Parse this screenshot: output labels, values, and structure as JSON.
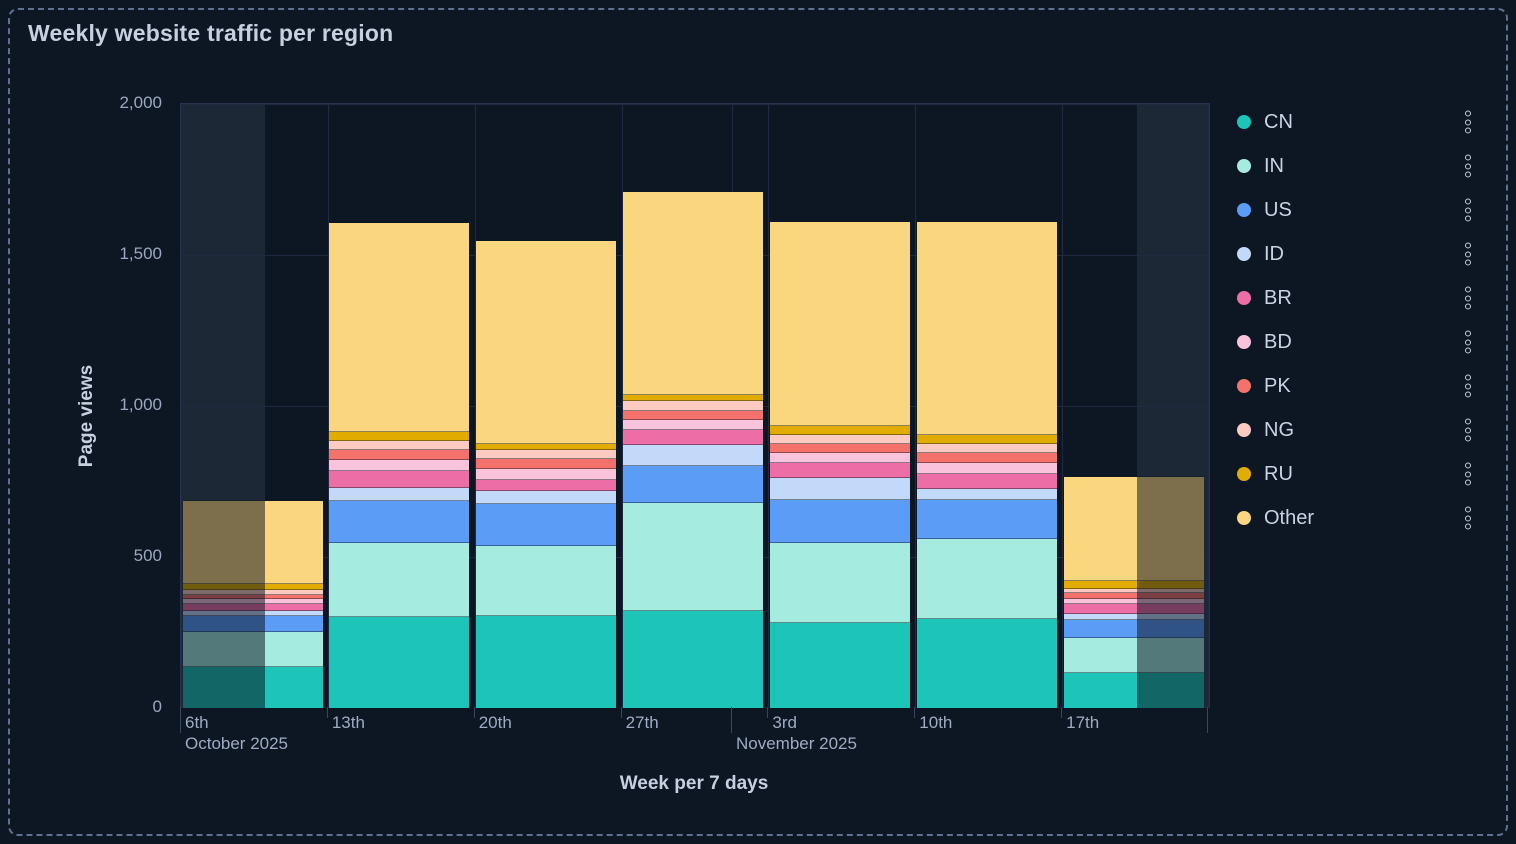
{
  "panel": {
    "title": "Weekly website traffic per region"
  },
  "chart_data": {
    "type": "bar",
    "stacked": true,
    "title": "Weekly website traffic per region",
    "xlabel": "Week per 7 days",
    "ylabel": "Page views",
    "ylim": [
      0,
      2000
    ],
    "yticks": [
      0,
      500,
      1000,
      1500,
      2000
    ],
    "ytick_labels": [
      "0",
      "500",
      "1,000",
      "1,500",
      "2,000"
    ],
    "categories": [
      "6th",
      "13th",
      "20th",
      "27th",
      "3rd",
      "10th",
      "17th"
    ],
    "month_labels": [
      {
        "text": "October 2025",
        "anchor_frac": 0.0
      },
      {
        "text": "November 2025",
        "anchor_frac": 0.536
      }
    ],
    "series": [
      {
        "name": "CN",
        "color": "#1cc5b7",
        "values": [
          135,
          300,
          305,
          320,
          280,
          295,
          115
        ]
      },
      {
        "name": "IN",
        "color": "#a5ebe0",
        "values": [
          115,
          245,
          230,
          360,
          265,
          265,
          115
        ]
      },
      {
        "name": "US",
        "color": "#5b9cf6",
        "values": [
          55,
          140,
          140,
          120,
          145,
          130,
          60
        ]
      },
      {
        "name": "ID",
        "color": "#c3d9fa",
        "values": [
          15,
          45,
          45,
          70,
          70,
          35,
          20
        ]
      },
      {
        "name": "BR",
        "color": "#ed6ea7",
        "values": [
          25,
          55,
          35,
          50,
          50,
          50,
          35
        ]
      },
      {
        "name": "BD",
        "color": "#fbc3db",
        "values": [
          15,
          35,
          35,
          35,
          35,
          35,
          15
        ]
      },
      {
        "name": "PK",
        "color": "#f4726b",
        "values": [
          15,
          35,
          35,
          30,
          30,
          35,
          20
        ]
      },
      {
        "name": "NG",
        "color": "#fccac1",
        "values": [
          15,
          30,
          30,
          30,
          30,
          30,
          15
        ]
      },
      {
        "name": "RU",
        "color": "#e2ab00",
        "values": [
          20,
          30,
          20,
          20,
          30,
          30,
          25
        ]
      },
      {
        "name": "Other",
        "color": "#fad67f",
        "values": [
          275,
          690,
          670,
          675,
          675,
          705,
          345
        ]
      }
    ],
    "bar_totals": [
      685,
      1605,
      1545,
      1710,
      1610,
      1610,
      765
    ],
    "dim_ranges_frac": [
      [
        0.0,
        0.082
      ],
      [
        0.93,
        1.0
      ]
    ],
    "legend_position": "right",
    "grid": true
  },
  "colors": {
    "background": "#0d1724",
    "frame_dashed_border": "#5e7190",
    "grid_line": "#1f2a40",
    "axis_text": "#9fabc2",
    "title_text": "#c7d0e0",
    "out_of_range_band": "rgba(173,196,230,0.10)",
    "out_of_range_bar_overlay": "rgba(10,17,29,0.52)"
  },
  "legend": {
    "menu_icon": "kebab-vertical-dots"
  }
}
